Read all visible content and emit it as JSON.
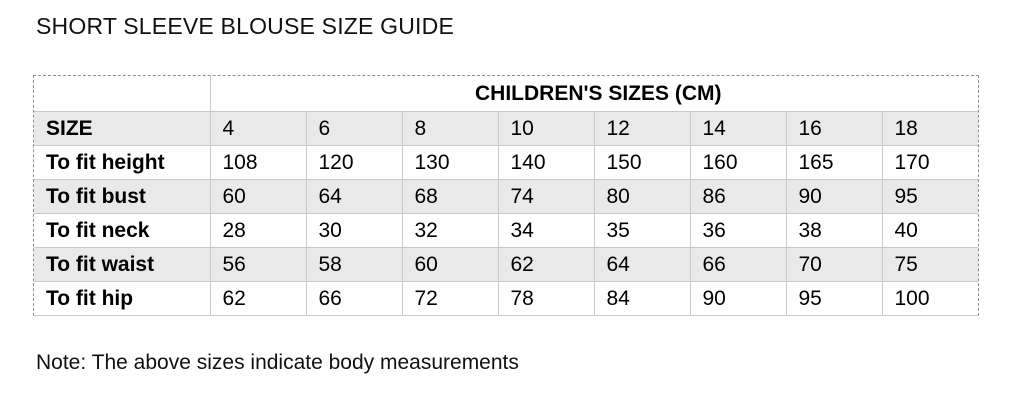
{
  "page": {
    "title": "SHORT SLEEVE BLOUSE SIZE GUIDE",
    "note": "Note: The above sizes indicate body measurements"
  },
  "table": {
    "group_header": "CHILDREN'S SIZES (CM)",
    "rows": [
      {
        "label": "SIZE",
        "values": [
          "4",
          "6",
          "8",
          "10",
          "12",
          "14",
          "16",
          "18"
        ]
      },
      {
        "label": "To fit height",
        "values": [
          "108",
          "120",
          "130",
          "140",
          "150",
          "160",
          "165",
          "170"
        ]
      },
      {
        "label": "To fit bust",
        "values": [
          "60",
          "64",
          "68",
          "74",
          "80",
          "86",
          "90",
          "95"
        ]
      },
      {
        "label": "To fit neck",
        "values": [
          "28",
          "30",
          "32",
          "34",
          "35",
          "36",
          "38",
          "40"
        ]
      },
      {
        "label": "To fit waist",
        "values": [
          "56",
          "58",
          "60",
          "62",
          "64",
          "66",
          "70",
          "75"
        ]
      },
      {
        "label": "To fit hip",
        "values": [
          "62",
          "66",
          "72",
          "78",
          "84",
          "90",
          "95",
          "100"
        ]
      }
    ],
    "colors": {
      "shaded_row_bg": "#e9e9e9",
      "cell_border": "#c9c9c9",
      "dashed_gridline": "#8f8f8f",
      "text": "#000000"
    }
  }
}
